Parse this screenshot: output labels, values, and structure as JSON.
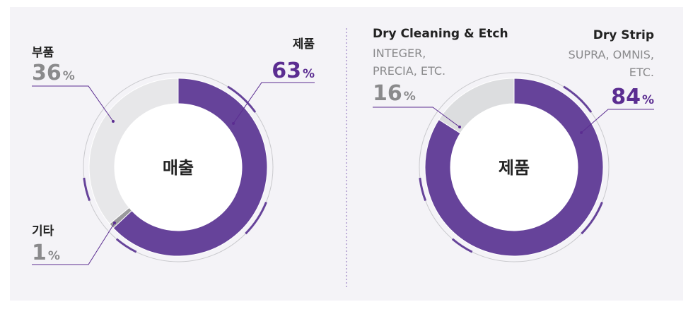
{
  "chart_data": [
    {
      "type": "pie",
      "center_label": "매출",
      "unit": "%",
      "categories": [
        "제품",
        "기타",
        "부품"
      ],
      "values": [
        63,
        1,
        36
      ],
      "colors": [
        "#66439a",
        "#9a9a9c",
        "#e7e7e9"
      ]
    },
    {
      "type": "pie",
      "center_label": "제품",
      "unit": "%",
      "categories": [
        "Dry Strip",
        "Dry Cleaning & Etch"
      ],
      "values": [
        84,
        16
      ],
      "descriptions": [
        [
          "SUPRA, OMNIS,",
          "ETC."
        ],
        [
          "INTEGER,",
          "PRECIA, ETC."
        ]
      ],
      "colors": [
        "#66439a",
        "#dcdddf"
      ]
    }
  ]
}
